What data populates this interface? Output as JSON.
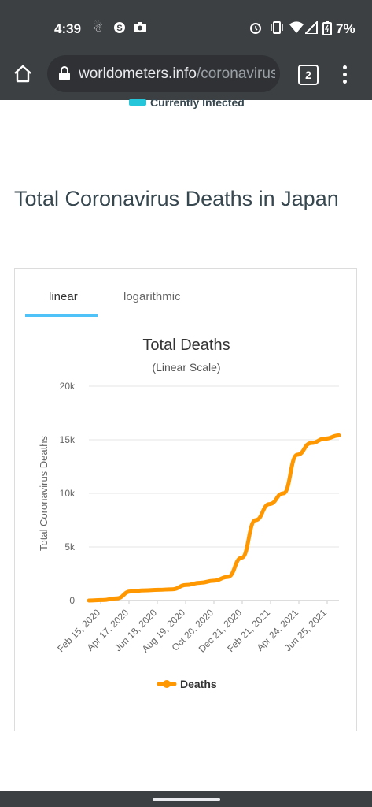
{
  "status_bar": {
    "time": "4:39",
    "battery": "7%",
    "icons": [
      "notification-icon",
      "shazam-icon",
      "camera-icon",
      "alarm-icon",
      "vibrate-icon",
      "wifi-icon",
      "signal-icon",
      "battery-icon"
    ]
  },
  "browser": {
    "url_domain": "worldometers.info",
    "url_path": "/coronavirus",
    "tab_count": "2"
  },
  "legend_top": {
    "label": "Currently Infected",
    "color": "#26c6da"
  },
  "page_title": "Total Coronavirus Deaths in Japan",
  "tabs": [
    {
      "label": "linear",
      "active": true
    },
    {
      "label": "logarithmic",
      "active": false
    }
  ],
  "chart_data": {
    "type": "line",
    "title": "Total Deaths",
    "subtitle": "(Linear Scale)",
    "ylabel": "Total Coronavirus Deaths",
    "xlabel": "",
    "ylim": [
      0,
      20000
    ],
    "yticks": [
      0,
      5000,
      10000,
      15000,
      20000
    ],
    "ytick_labels": [
      "0",
      "5k",
      "10k",
      "15k",
      "20k"
    ],
    "xtick_labels": [
      "Feb 15, 2020",
      "Apr 17, 2020",
      "Jun 18, 2020",
      "Aug 19, 2020",
      "Oct 20, 2020",
      "Dec 21, 2020",
      "Feb 21, 2021",
      "Apr 24, 2021",
      "Jun 25, 2021"
    ],
    "grid": true,
    "legend_position": "bottom",
    "series": [
      {
        "name": "Deaths",
        "color": "#ff9800",
        "x": [
          "Feb 15, 2020",
          "Mar 15, 2020",
          "Apr 17, 2020",
          "May 17, 2020",
          "Jun 18, 2020",
          "Jul 18, 2020",
          "Aug 19, 2020",
          "Sep 19, 2020",
          "Oct 20, 2020",
          "Nov 20, 2020",
          "Dec 21, 2020",
          "Jan 21, 2021",
          "Feb 21, 2021",
          "Mar 21, 2021",
          "Apr 24, 2021",
          "May 25, 2021",
          "Jun 25, 2021",
          "Jul 25, 2021",
          "Aug 20, 2021"
        ],
        "values": [
          0,
          50,
          200,
          850,
          950,
          1000,
          1050,
          1450,
          1650,
          1850,
          2200,
          4000,
          7500,
          9000,
          10000,
          13600,
          14700,
          15100,
          15400
        ]
      }
    ]
  }
}
